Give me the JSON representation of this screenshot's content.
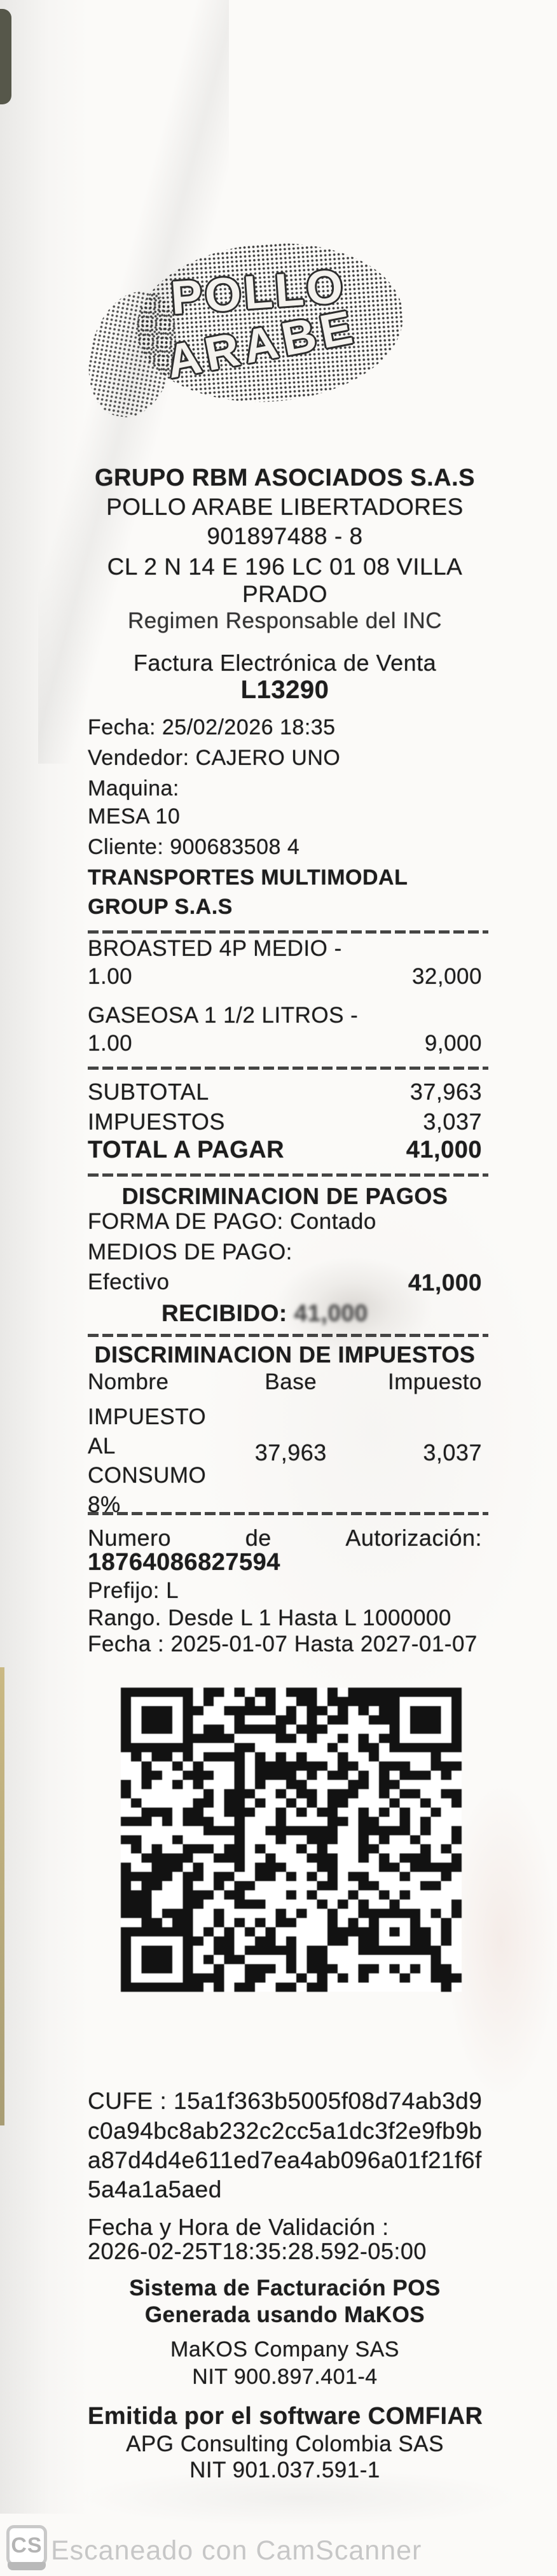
{
  "colors": {
    "ink": "#1d1d1d",
    "paper": "#fbfaf8",
    "watermark_gray": "#c7c7c7",
    "edge_strip": "#b99f4e"
  },
  "logo": {
    "line1": "POLLO",
    "line2": "ARABE"
  },
  "receipt": {
    "header": {
      "company": "GRUPO RBM ASOCIADOS S.A.S",
      "store": "POLLO ARABE LIBERTADORES",
      "nit": "901897488 - 8",
      "address_line1": "CL 2 N 14 E 196 LC 01 08 VILLA",
      "address_line2": "PRADO",
      "regimen": "Regimen Responsable del INC",
      "doc_type": "Factura Electrónica de Venta",
      "doc_number": "L13290"
    },
    "info": {
      "fecha": "Fecha: 25/02/2026 18:35",
      "vendedor": "Vendedor: CAJERO UNO",
      "maquina": "Maquina:",
      "mesa": "MESA 10",
      "cliente": "Cliente: 900683508 4",
      "cliente_nombre1": "TRANSPORTES MULTIMODAL",
      "cliente_nombre2": "GROUP S.A.S"
    },
    "items": [
      {
        "name": "BROASTED 4P MEDIO -",
        "qty": "1.00",
        "price": "32,000"
      },
      {
        "name": "GASEOSA 1 1/2 LITROS -",
        "qty": "1.00",
        "price": "9,000"
      }
    ],
    "totals": [
      {
        "label": "SUBTOTAL",
        "value": "37,963"
      },
      {
        "label": "IMPUESTOS",
        "value": "3,037"
      },
      {
        "label": "TOTAL A PAGAR",
        "value": "41,000"
      }
    ],
    "payments": {
      "title": "DISCRIMINACION DE PAGOS",
      "forma": "FORMA DE PAGO: Contado",
      "medios": "MEDIOS DE PAGO:",
      "efectivo_label": "Efectivo",
      "efectivo_value": "41,000",
      "recibido_label": "RECIBIDO:",
      "recibido_value": "41,000"
    },
    "taxes": {
      "title": "DISCRIMINACION DE IMPUESTOS",
      "col_nombre": "Nombre",
      "col_base": "Base",
      "col_impuesto": "Impuesto",
      "row_name_lines": [
        "IMPUESTO",
        "AL",
        "CONSUMO",
        "8%"
      ],
      "row_base": "37,963",
      "row_impuesto": "3,037"
    },
    "authorization": {
      "word1": "Numero",
      "word2": "de",
      "word3": "Autorización:",
      "number": "18764086827594",
      "prefijo": "Prefijo: L",
      "rango": "Rango. Desde L 1 Hasta L 1000000",
      "fecha": "Fecha : 2025-01-07 Hasta 2027-01-07"
    },
    "cufe": {
      "lines": [
        "CUFE : 15a1f363b5005f08d74ab3d9",
        "c0a94bc8ab232c2cc5a1dc3f2e9fb9b",
        "a87d4d4e611ed7ea4ab096a01f21f6f",
        "5a4a1a5aed"
      ]
    },
    "validation": {
      "label": "Fecha y Hora de Validación :",
      "value": "2026-02-25T18:35:28.592-05:00"
    },
    "footer": {
      "pos1": "Sistema de Facturación POS",
      "pos2": "Generada usando MaKOS",
      "makos_company": "MaKOS Company SAS",
      "makos_nit": "NIT 900.897.401-4",
      "comfiar": "Emitida por el software COMFIAR",
      "apg": "APG Consulting Colombia SAS",
      "apg_nit": "NIT 901.037.591-1"
    }
  },
  "watermark": {
    "logo": "CS",
    "text": "Escaneado con CamScanner"
  }
}
